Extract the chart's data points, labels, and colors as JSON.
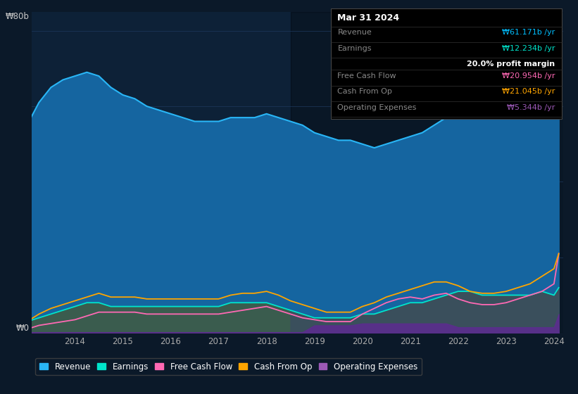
{
  "bg_color": "#0b1929",
  "plot_bg_color": "#0d2137",
  "grid_color": "#1e3a5f",
  "title_date": "Mar 31 2024",
  "tooltip": {
    "Revenue": {
      "value": "₩61.171b",
      "color": "#00bfff"
    },
    "Earnings": {
      "value": "₩12.234b",
      "color": "#00e5cc"
    },
    "profit_margin": "20.0%",
    "Free Cash Flow": {
      "value": "₩20.954b",
      "color": "#ff69b4"
    },
    "Cash From Op": {
      "value": "₩21.045b",
      "color": "#ffa500"
    },
    "Operating Expenses": {
      "value": "₩5.344b",
      "color": "#9b59b6"
    }
  },
  "years": [
    2013.0,
    2013.25,
    2013.5,
    2013.75,
    2014.0,
    2014.25,
    2014.5,
    2014.75,
    2015.0,
    2015.25,
    2015.5,
    2015.75,
    2016.0,
    2016.25,
    2016.5,
    2016.75,
    2017.0,
    2017.25,
    2017.5,
    2017.75,
    2018.0,
    2018.25,
    2018.5,
    2018.75,
    2019.0,
    2019.25,
    2019.5,
    2019.75,
    2020.0,
    2020.25,
    2020.5,
    2020.75,
    2021.0,
    2021.25,
    2021.5,
    2021.75,
    2022.0,
    2022.25,
    2022.5,
    2022.75,
    2023.0,
    2023.25,
    2023.5,
    2023.75,
    2024.0,
    2024.1
  ],
  "revenue": [
    55,
    61,
    65,
    67,
    68,
    69,
    68,
    65,
    63,
    62,
    60,
    59,
    58,
    57,
    56,
    56,
    56,
    57,
    57,
    57,
    58,
    57,
    56,
    55,
    53,
    52,
    51,
    51,
    50,
    49,
    50,
    51,
    52,
    53,
    55,
    57,
    60,
    62,
    61,
    62,
    62,
    61,
    60,
    61,
    58,
    61
  ],
  "earnings": [
    3,
    4,
    5,
    6,
    7,
    8,
    8,
    7,
    7,
    7,
    7,
    7,
    7,
    7,
    7,
    7,
    7,
    8,
    8,
    8,
    8,
    7,
    6,
    5,
    4,
    4,
    4,
    4,
    5,
    5,
    6,
    7,
    8,
    8,
    9,
    10,
    11,
    11,
    10,
    10,
    10,
    10,
    10,
    11,
    10,
    12
  ],
  "free_cash_flow": [
    1.0,
    2.0,
    2.5,
    3.0,
    3.5,
    4.5,
    5.5,
    5.5,
    5.5,
    5.5,
    5.0,
    5.0,
    5.0,
    5.0,
    5.0,
    5.0,
    5.0,
    5.5,
    6.0,
    6.5,
    7.0,
    6.0,
    5.0,
    4.0,
    3.5,
    3.0,
    3.0,
    3.0,
    5.0,
    6.5,
    8.0,
    9.0,
    9.5,
    9.0,
    10.0,
    10.5,
    9.0,
    8.0,
    7.5,
    7.5,
    8.0,
    9.0,
    10.0,
    11.0,
    13.0,
    21.0
  ],
  "cash_from_op": [
    3.0,
    5.0,
    6.5,
    7.5,
    8.5,
    9.5,
    10.5,
    9.5,
    9.5,
    9.5,
    9.0,
    9.0,
    9.0,
    9.0,
    9.0,
    9.0,
    9.0,
    10.0,
    10.5,
    10.5,
    11.0,
    10.0,
    8.5,
    7.5,
    6.5,
    5.5,
    5.5,
    5.5,
    7.0,
    8.0,
    9.5,
    10.5,
    11.5,
    12.5,
    13.5,
    13.5,
    12.5,
    11.0,
    10.5,
    10.5,
    11.0,
    12.0,
    13.0,
    15.0,
    17.0,
    21.0
  ],
  "operating_expenses": [
    0.2,
    0.2,
    0.2,
    0.2,
    0.2,
    0.2,
    0.2,
    0.2,
    0.2,
    0.2,
    0.2,
    0.2,
    0.2,
    0.2,
    0.2,
    0.2,
    0.2,
    0.2,
    0.2,
    0.2,
    0.2,
    0.2,
    0.2,
    0.2,
    2.0,
    2.0,
    2.0,
    2.0,
    2.5,
    2.5,
    2.5,
    2.5,
    2.5,
    2.5,
    2.5,
    2.5,
    1.5,
    1.5,
    1.5,
    1.5,
    1.5,
    1.5,
    1.5,
    1.5,
    1.5,
    5.0
  ],
  "revenue_color": "#29b6f6",
  "revenue_fill": "#1565a0",
  "earnings_color": "#00e5cc",
  "earnings_fill_pre": "#3a5c4e",
  "earnings_fill_post": "#3a4f5c",
  "free_cash_flow_color": "#ff69b4",
  "cash_from_op_color": "#ffa500",
  "op_exp_fill": "#5b2d8e",
  "op_exp_color": "#9b59b6",
  "highlight_start": 2018.5,
  "highlight_end": 2024.2,
  "ylabel_80": "₩80b",
  "ylabel_0": "₩0",
  "xlim": [
    2013.1,
    2024.2
  ],
  "ylim": [
    0,
    85
  ],
  "legend_items": [
    "Revenue",
    "Earnings",
    "Free Cash Flow",
    "Cash From Op",
    "Operating Expenses"
  ],
  "legend_colors": [
    "#29b6f6",
    "#00e5cc",
    "#ff69b4",
    "#ffa500",
    "#9b59b6"
  ],
  "xtick_positions": [
    2014,
    2015,
    2016,
    2017,
    2018,
    2019,
    2020,
    2021,
    2022,
    2023,
    2024
  ]
}
